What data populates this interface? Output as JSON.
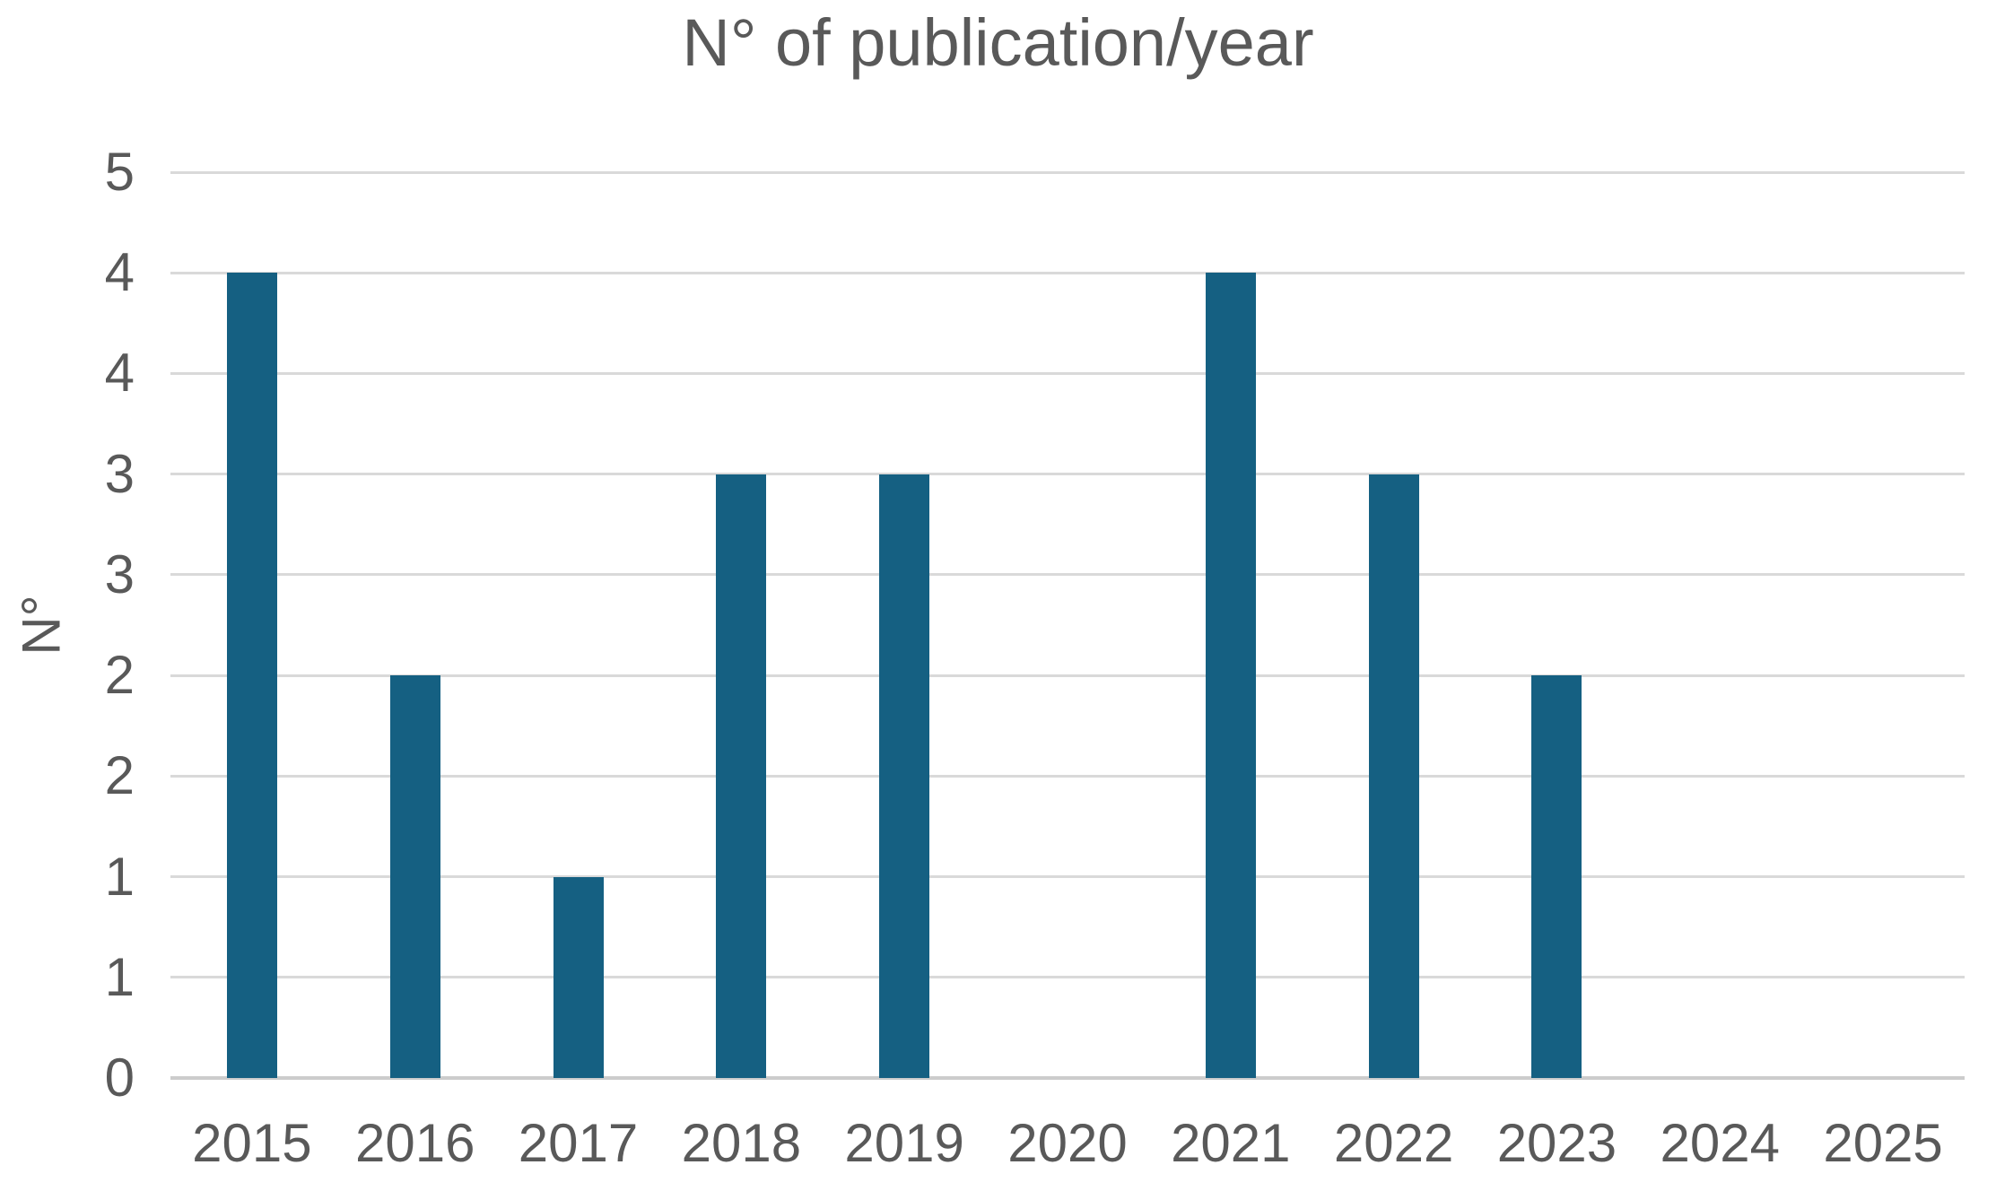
{
  "chart": {
    "title": "N° of publication/year",
    "y_axis_title": "N°"
  },
  "chart_data": {
    "type": "bar",
    "title": "N° of publication/year",
    "xlabel": "",
    "ylabel": "N°",
    "categories": [
      "2015",
      "2016",
      "2017",
      "2018",
      "2019",
      "2020",
      "2021",
      "2022",
      "2023",
      "2024",
      "2025"
    ],
    "values": [
      4,
      2,
      1,
      3,
      3,
      0,
      4,
      3,
      2,
      0,
      0
    ],
    "ylim": [
      0,
      4.5
    ],
    "y_tick_step": 0.5,
    "y_ticks": [
      {
        "value": 4.5,
        "label": "5"
      },
      {
        "value": 4.0,
        "label": "4"
      },
      {
        "value": 3.5,
        "label": "4"
      },
      {
        "value": 3.0,
        "label": "3"
      },
      {
        "value": 2.5,
        "label": "3"
      },
      {
        "value": 2.0,
        "label": "2"
      },
      {
        "value": 1.5,
        "label": "2"
      },
      {
        "value": 1.0,
        "label": "1"
      },
      {
        "value": 0.5,
        "label": "1"
      },
      {
        "value": 0.0,
        "label": "0"
      }
    ],
    "grid": "horizontal",
    "legend": "none",
    "colors": {
      "bar": "#156082",
      "gridline": "#d9d9d9",
      "axis_line": "#cccccc",
      "text": "#595959",
      "background": "#ffffff"
    }
  }
}
